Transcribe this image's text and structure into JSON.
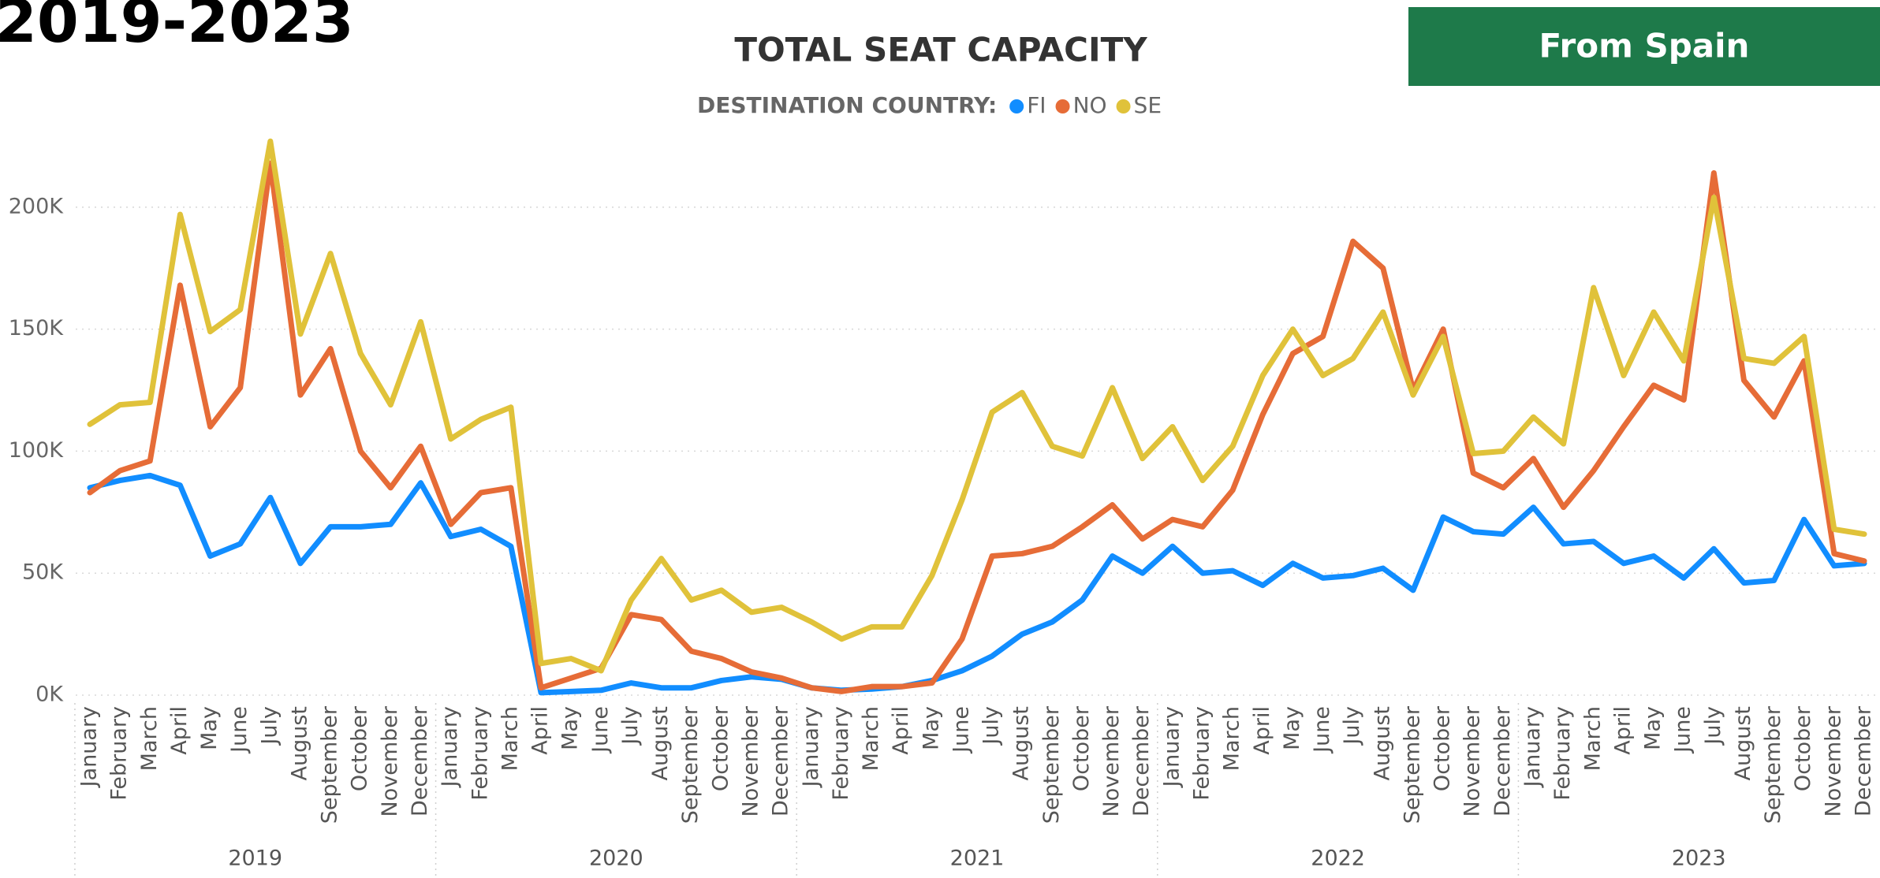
{
  "chart_data": {
    "type": "line",
    "heading": "2019-2023",
    "button": "From Spain",
    "title": "TOTAL SEAT CAPACITY",
    "legend_title": "DESTINATION COUNTRY:",
    "categories": [
      "January",
      "February",
      "March",
      "April",
      "May",
      "June",
      "July",
      "August",
      "September",
      "October",
      "November",
      "December",
      "January",
      "February",
      "March",
      "April",
      "May",
      "June",
      "July",
      "August",
      "September",
      "October",
      "November",
      "December",
      "January",
      "February",
      "March",
      "April",
      "May",
      "June",
      "July",
      "August",
      "September",
      "October",
      "November",
      "December",
      "January",
      "February",
      "March",
      "April",
      "May",
      "June",
      "July",
      "August",
      "September",
      "October",
      "November",
      "December",
      "January",
      "February",
      "March",
      "April",
      "May",
      "June",
      "July",
      "August",
      "September",
      "October",
      "November",
      "December"
    ],
    "years": [
      "2019",
      "2020",
      "2021",
      "2022",
      "2023"
    ],
    "series": [
      {
        "name": "FI",
        "color": "#118dff",
        "values": [
          85000,
          88000,
          90000,
          86000,
          57000,
          62000,
          81000,
          54000,
          69000,
          69000,
          70000,
          87000,
          65000,
          68000,
          61000,
          1000,
          1500,
          2000,
          5000,
          3000,
          3000,
          6000,
          7500,
          6500,
          3000,
          2000,
          2500,
          3500,
          6000,
          10000,
          16000,
          25000,
          30000,
          39000,
          57000,
          50000,
          61000,
          50000,
          51000,
          45000,
          54000,
          48000,
          49000,
          52000,
          43000,
          73000,
          67000,
          66000,
          77000,
          62000,
          63000,
          54000,
          57000,
          48000,
          60000,
          46000,
          47000,
          72000,
          53000,
          54000
        ]
      },
      {
        "name": "NO",
        "color": "#e66c37",
        "values": [
          83000,
          92000,
          96000,
          168000,
          110000,
          126000,
          218000,
          123000,
          142000,
          100000,
          85000,
          102000,
          70000,
          83000,
          85000,
          3000,
          7000,
          11000,
          33000,
          31000,
          18000,
          15000,
          9500,
          7000,
          3000,
          1500,
          3500,
          3500,
          5000,
          23000,
          57000,
          58000,
          61000,
          69000,
          78000,
          64000,
          72000,
          69000,
          84000,
          115000,
          140000,
          147000,
          186000,
          175000,
          125000,
          150000,
          91000,
          85000,
          97000,
          77000,
          92000,
          110000,
          127000,
          121000,
          214000,
          129000,
          114000,
          137000,
          58000,
          55000
        ]
      },
      {
        "name": "SE",
        "color": "#e0c23a",
        "values": [
          111000,
          119000,
          120000,
          197000,
          149000,
          158000,
          227000,
          148000,
          181000,
          140000,
          119000,
          153000,
          105000,
          113000,
          118000,
          13000,
          15000,
          10000,
          39000,
          56000,
          39000,
          43000,
          34000,
          36000,
          30000,
          23000,
          28000,
          28000,
          49000,
          80000,
          116000,
          124000,
          102000,
          98000,
          126000,
          97000,
          110000,
          88000,
          102000,
          131000,
          150000,
          131000,
          138000,
          157000,
          123000,
          147000,
          99000,
          100000,
          114000,
          103000,
          167000,
          131000,
          157000,
          137000,
          204000,
          138000,
          136000,
          147000,
          68000,
          66000
        ]
      }
    ],
    "ylim": [
      0,
      240000
    ],
    "yticks": [
      {
        "value": 0,
        "label": "0K"
      },
      {
        "value": 50000,
        "label": "50K"
      },
      {
        "value": 100000,
        "label": "100K"
      },
      {
        "value": 150000,
        "label": "150K"
      },
      {
        "value": 200000,
        "label": "200K"
      }
    ],
    "grid": true
  }
}
